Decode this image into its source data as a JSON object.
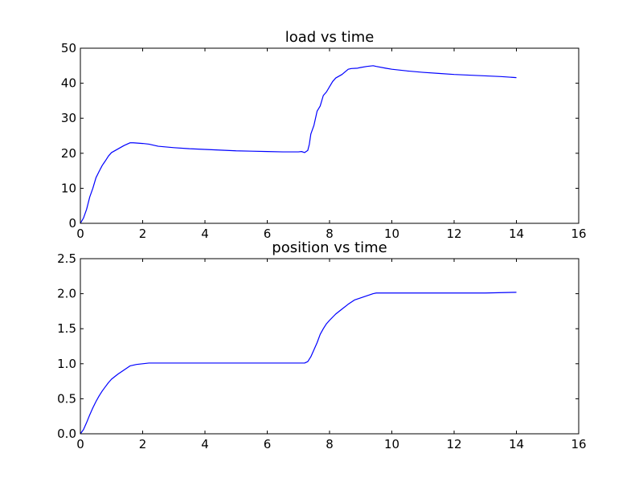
{
  "chart_data": [
    {
      "type": "line",
      "title": "load vs time",
      "xlabel": "",
      "ylabel": "",
      "xlim": [
        0,
        16
      ],
      "ylim": [
        0,
        50
      ],
      "xticks": [
        "0",
        "2",
        "4",
        "6",
        "8",
        "10",
        "12",
        "14",
        "16"
      ],
      "yticks": [
        "0",
        "10",
        "20",
        "30",
        "40",
        "50"
      ],
      "grid": false,
      "line_color": "#0000ff",
      "series": [
        {
          "x": [
            0,
            0.1,
            0.2,
            0.3,
            0.4,
            0.5,
            0.6,
            0.7,
            0.8,
            0.9,
            1.0,
            1.2,
            1.4,
            1.6,
            1.7,
            2.0,
            2.2,
            2.5,
            3.0,
            3.5,
            4.0,
            4.5,
            5.0,
            5.5,
            6.0,
            6.5,
            7.0,
            7.1,
            7.2,
            7.3,
            7.35,
            7.4,
            7.5,
            7.6,
            7.7,
            7.8,
            7.9,
            8.0,
            8.1,
            8.2,
            8.4,
            8.6,
            8.7,
            8.9,
            9.0,
            9.2,
            9.4,
            9.5,
            9.8,
            10.0,
            10.5,
            11.0,
            11.5,
            12.0,
            12.5,
            13.0,
            13.5,
            14.0
          ],
          "y": [
            0,
            1.5,
            4.0,
            7.5,
            10.0,
            13.0,
            14.8,
            16.5,
            17.8,
            19.2,
            20.2,
            21.2,
            22.2,
            23.0,
            23.0,
            22.8,
            22.6,
            22.0,
            21.6,
            21.3,
            21.1,
            20.9,
            20.7,
            20.6,
            20.5,
            20.4,
            20.4,
            20.5,
            20.2,
            20.8,
            22.5,
            25.5,
            28.0,
            32.0,
            33.5,
            36.5,
            37.5,
            39.0,
            40.5,
            41.5,
            42.5,
            44.0,
            44.2,
            44.3,
            44.5,
            44.8,
            45.0,
            44.8,
            44.3,
            44.0,
            43.5,
            43.1,
            42.8,
            42.5,
            42.3,
            42.1,
            41.9,
            41.6
          ]
        }
      ]
    },
    {
      "type": "line",
      "title": "position vs time",
      "xlabel": "",
      "ylabel": "",
      "xlim": [
        0,
        16
      ],
      "ylim": [
        0,
        2.5
      ],
      "xticks": [
        "0",
        "2",
        "4",
        "6",
        "8",
        "10",
        "12",
        "14",
        "16"
      ],
      "yticks": [
        "0.0",
        "0.5",
        "1.0",
        "1.5",
        "2.0",
        "2.5"
      ],
      "grid": false,
      "line_color": "#0000ff",
      "series": [
        {
          "x": [
            0,
            0.1,
            0.2,
            0.3,
            0.4,
            0.5,
            0.6,
            0.7,
            0.8,
            0.9,
            1.0,
            1.2,
            1.4,
            1.6,
            1.8,
            2.0,
            2.2,
            2.5,
            3.0,
            4.0,
            5.0,
            6.0,
            7.0,
            7.2,
            7.3,
            7.4,
            7.5,
            7.6,
            7.7,
            7.8,
            7.9,
            8.0,
            8.2,
            8.4,
            8.6,
            8.8,
            9.0,
            9.2,
            9.4,
            9.5,
            9.8,
            10.0,
            11.0,
            12.0,
            13.0,
            14.0
          ],
          "y": [
            0,
            0.06,
            0.16,
            0.27,
            0.37,
            0.46,
            0.54,
            0.61,
            0.67,
            0.73,
            0.78,
            0.85,
            0.91,
            0.97,
            0.99,
            1.0,
            1.01,
            1.01,
            1.01,
            1.01,
            1.01,
            1.01,
            1.01,
            1.01,
            1.03,
            1.1,
            1.2,
            1.3,
            1.42,
            1.5,
            1.57,
            1.62,
            1.71,
            1.78,
            1.85,
            1.91,
            1.94,
            1.97,
            2.0,
            2.01,
            2.01,
            2.01,
            2.01,
            2.01,
            2.01,
            2.02
          ]
        }
      ]
    }
  ]
}
